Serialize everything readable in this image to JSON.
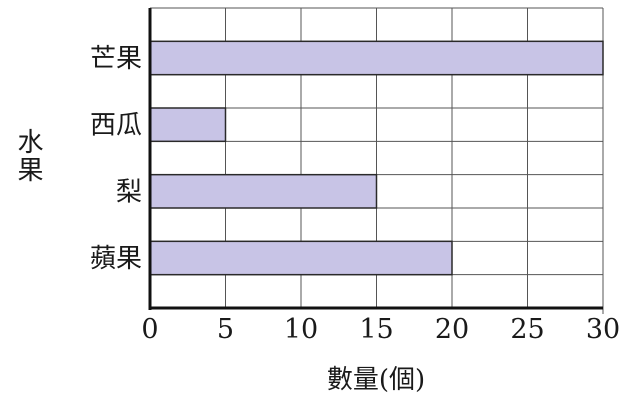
{
  "chart_data": {
    "type": "bar",
    "orientation": "horizontal",
    "categories": [
      "芒果",
      "西瓜",
      "梨",
      "蘋果"
    ],
    "values": [
      30,
      5,
      15,
      20
    ],
    "title": "",
    "xlabel": "數量(個)",
    "ylabel": "水果",
    "xlim": [
      0,
      30
    ],
    "xticks": [
      "0",
      "5",
      "10",
      "15",
      "20",
      "25",
      "30"
    ],
    "grid": true,
    "bar_color": "#c8c4e6",
    "bar_edge_color": "#2a2a2a"
  }
}
